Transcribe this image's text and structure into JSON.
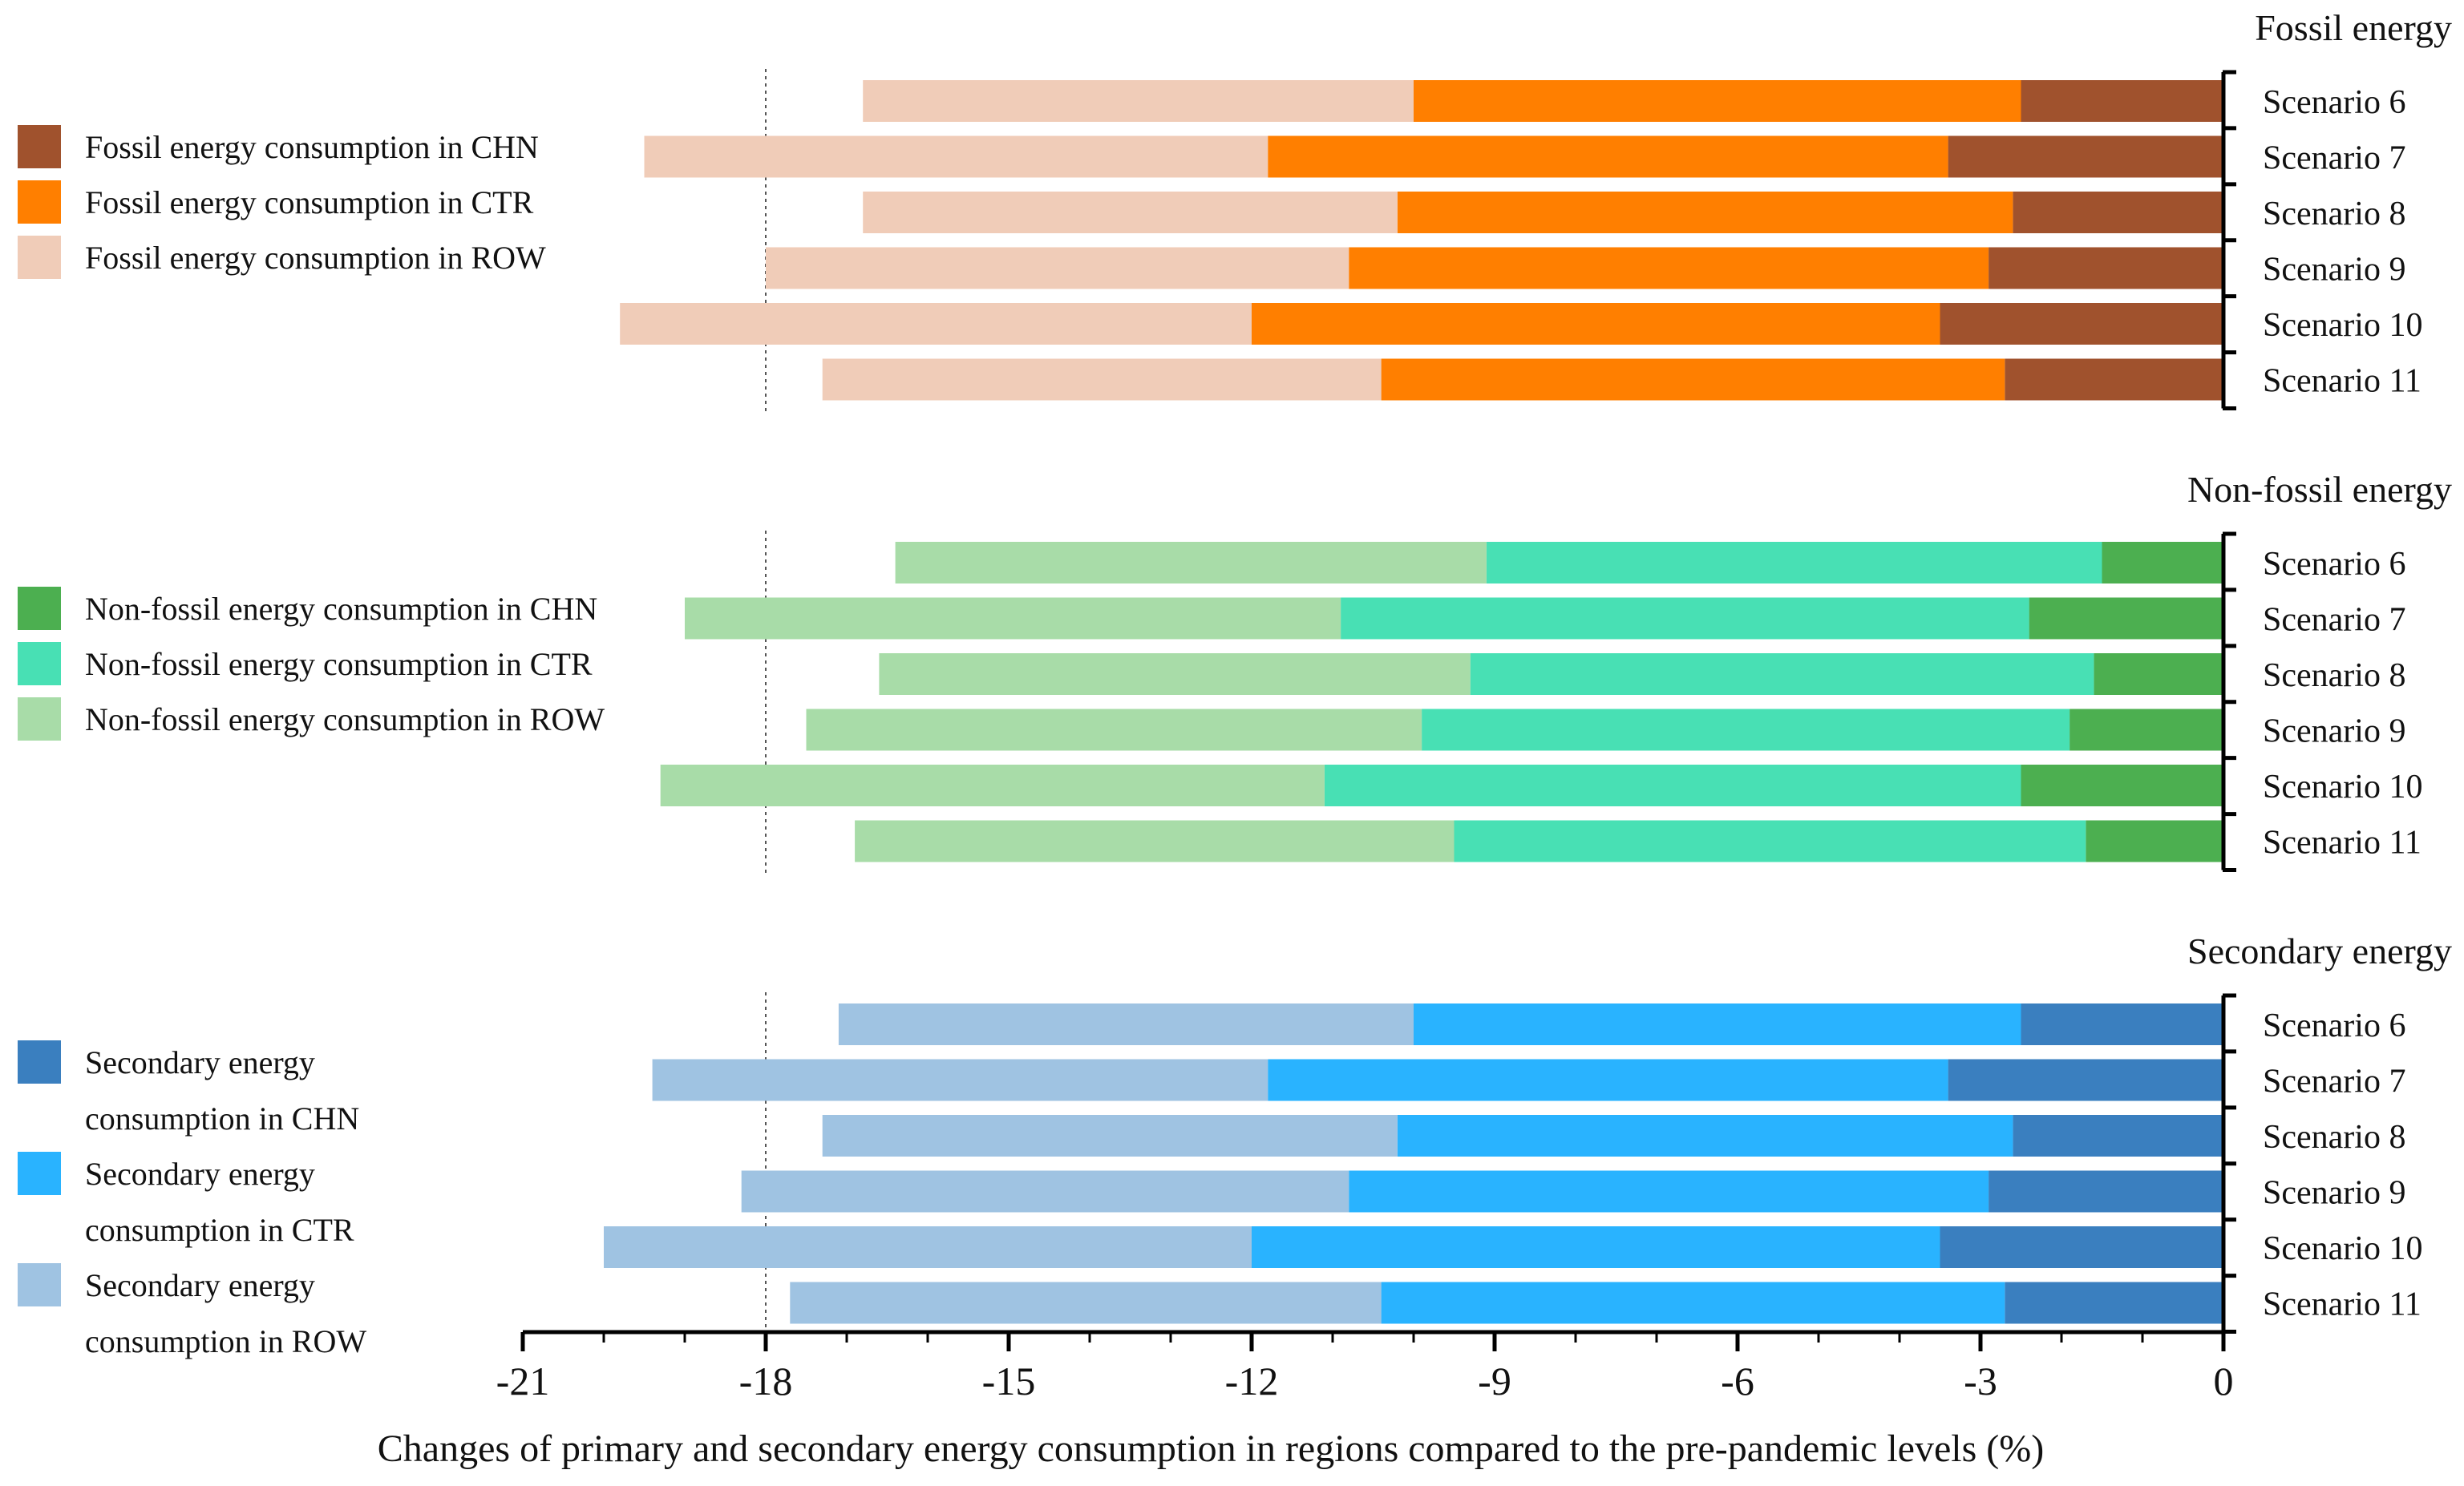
{
  "chart_data": {
    "type": "bar",
    "orientation": "horizontal",
    "stacked": true,
    "categories": [
      "Scenario 6",
      "Scenario 7",
      "Scenario 8",
      "Scenario 9",
      "Scenario 10",
      "Scenario 11"
    ],
    "xlabel": "Changes of primary and secondary energy consumption in regions compared to the pre-pandemic levels (%)",
    "xlim": [
      -21,
      0
    ],
    "xticks": [
      -21,
      -18,
      -15,
      -12,
      -9,
      -6,
      -3,
      0
    ],
    "xtick_labels": [
      "-21",
      "-18",
      "-15",
      "-12",
      "-9",
      "-6",
      "-3",
      "0"
    ],
    "reference_line": -18,
    "panels": [
      {
        "title": "Fossil energy",
        "series": [
          {
            "name": "CHN",
            "legend": "Fossil energy consumption in CHN",
            "color": "#A0522D",
            "values": [
              -2.5,
              -3.4,
              -2.6,
              -2.9,
              -3.5,
              -2.7
            ]
          },
          {
            "name": "CTR",
            "legend": "Fossil energy consumption in CTR",
            "color": "#FF7F00",
            "values": [
              -7.5,
              -8.4,
              -7.6,
              -7.9,
              -8.5,
              -7.7
            ]
          },
          {
            "name": "ROW",
            "legend": "Fossil energy consumption in ROW",
            "color": "#F0CCB8",
            "values": [
              -6.8,
              -7.7,
              -6.6,
              -7.2,
              -7.8,
              -6.9
            ]
          }
        ]
      },
      {
        "title": "Non-fossil energy",
        "series": [
          {
            "name": "CHN",
            "legend": "Non-fossil energy consumption in CHN",
            "color": "#4CAF50",
            "values": [
              -1.5,
              -2.4,
              -1.6,
              -1.9,
              -2.5,
              -1.7
            ]
          },
          {
            "name": "CTR",
            "legend": "Non-fossil energy consumption in CTR",
            "color": "#48E0B4",
            "values": [
              -7.6,
              -8.5,
              -7.7,
              -8.0,
              -8.6,
              -7.8
            ]
          },
          {
            "name": "ROW",
            "legend": "Non-fossil energy consumption in ROW",
            "color": "#A8DCA8",
            "values": [
              -7.3,
              -8.1,
              -7.3,
              -7.6,
              -8.2,
              -7.4
            ]
          }
        ]
      },
      {
        "title": "Secondary energy",
        "series": [
          {
            "name": "CHN",
            "legend": "Secondary energy consumption in CHN",
            "legend_lines": [
              "Secondary energy",
              "consumption in CHN"
            ],
            "color": "#3A7FBF",
            "values": [
              -2.5,
              -3.4,
              -2.6,
              -2.9,
              -3.5,
              -2.7
            ]
          },
          {
            "name": "CTR",
            "legend": "Secondary energy consumption in CTR",
            "legend_lines": [
              "Secondary energy",
              "consumption in CTR"
            ],
            "color": "#29B3FF",
            "values": [
              -7.5,
              -8.4,
              -7.6,
              -7.9,
              -8.5,
              -7.7
            ]
          },
          {
            "name": "ROW",
            "legend": "Secondary energy consumption in ROW",
            "legend_lines": [
              "Secondary energy",
              "consumption in ROW"
            ],
            "color": "#9FC3E2",
            "values": [
              -7.1,
              -7.6,
              -7.1,
              -7.5,
              -8.0,
              -7.3
            ]
          }
        ]
      }
    ]
  }
}
